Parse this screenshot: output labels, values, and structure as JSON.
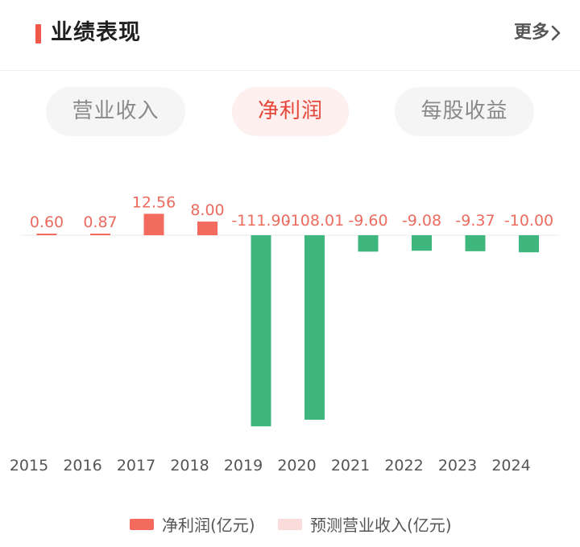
{
  "header": {
    "title": "业绩表现",
    "more_label": "更多"
  },
  "tabs": [
    {
      "label": "营业收入",
      "active": false
    },
    {
      "label": "净利润",
      "active": true
    },
    {
      "label": "每股收益",
      "active": false
    }
  ],
  "colors": {
    "positive": "#f36b5e",
    "negative": "#3eb67e",
    "accent": "#f0584a",
    "positive_label": "#ec6b5f",
    "forecast": "#f9dcd9"
  },
  "legend": [
    {
      "label": "净利润(亿元)",
      "color": "#f36b5e"
    },
    {
      "label": "预测营业收入(亿元)",
      "color": "#f9dcd9"
    }
  ],
  "chart_data": {
    "type": "bar",
    "categories": [
      "2015",
      "2016",
      "2017",
      "2018",
      "2019",
      "2020",
      "2021",
      "2022",
      "2023",
      "2024"
    ],
    "values": [
      0.6,
      0.87,
      12.56,
      8.0,
      -111.9,
      -108.01,
      -9.6,
      -9.08,
      -9.37,
      -10.0
    ],
    "value_labels": [
      "0.60",
      "0.87",
      "12.56",
      "8.00",
      "-111.90",
      "-108.01",
      "-9.60",
      "-9.08",
      "-9.37",
      "-10.00"
    ],
    "series": [
      {
        "name": "净利润(亿元)"
      }
    ],
    "legend_position": "bottom"
  }
}
